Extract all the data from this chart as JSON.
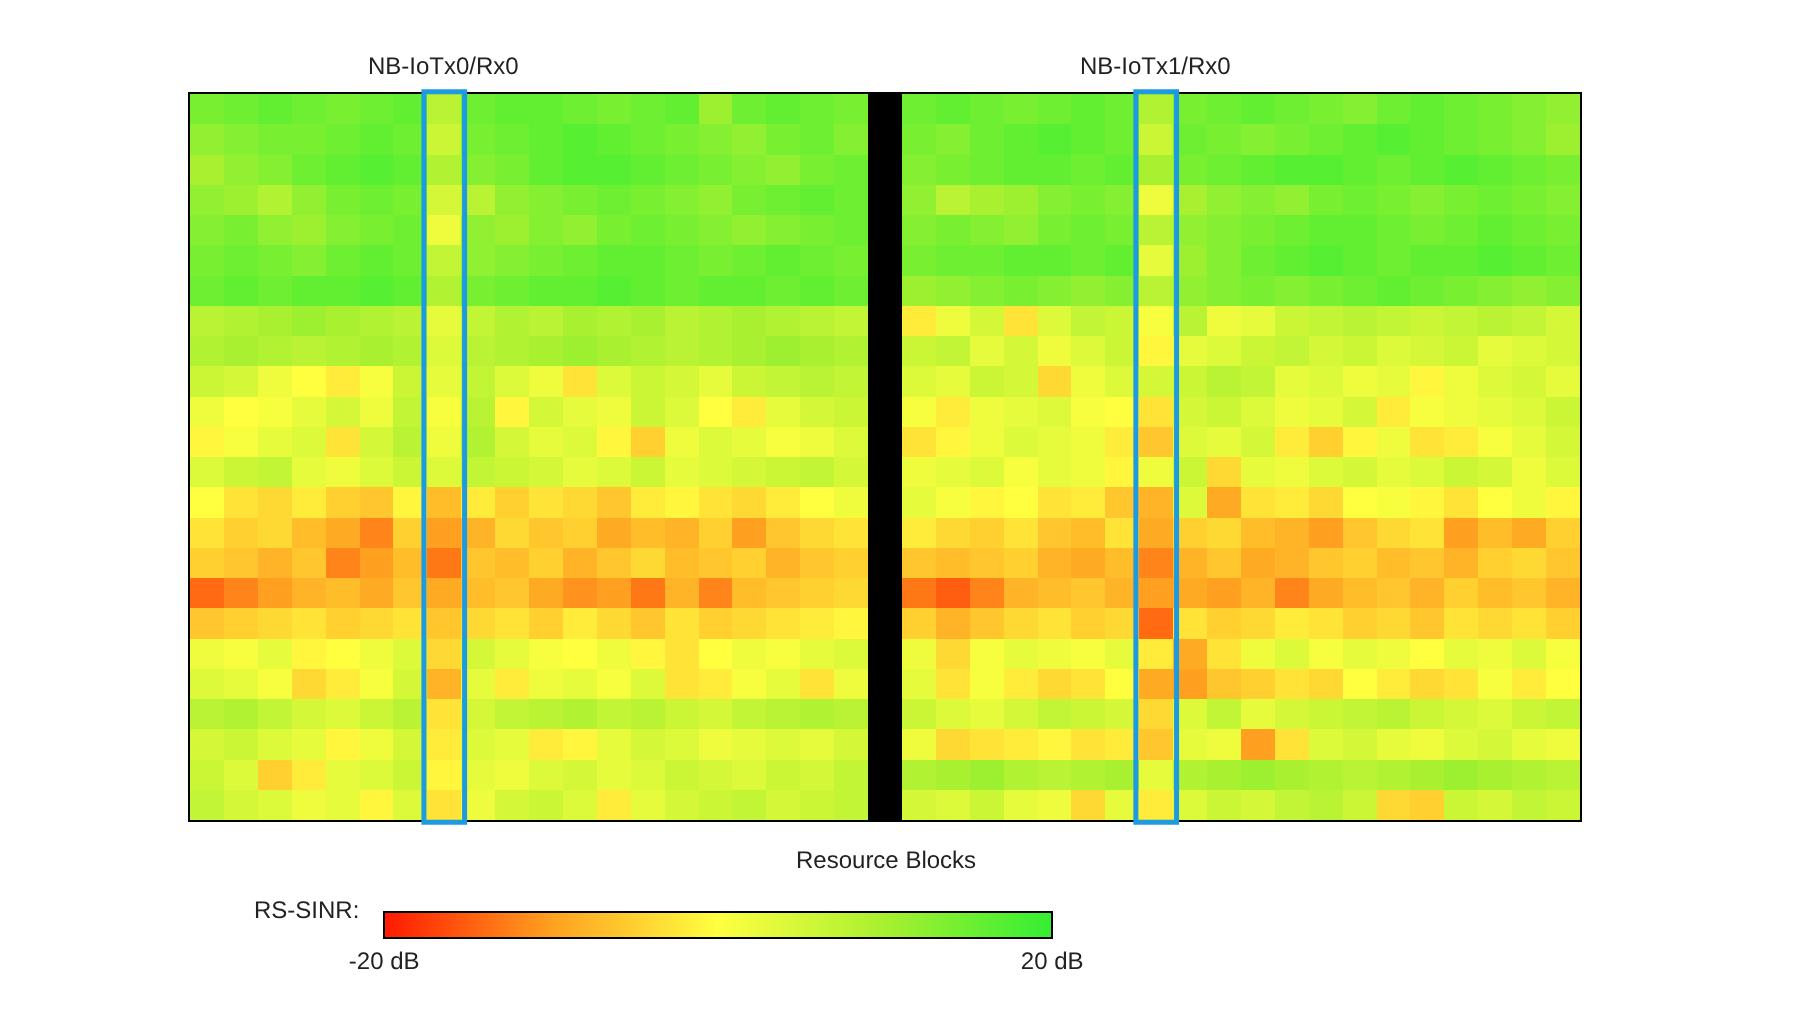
{
  "chart_data": {
    "type": "heatmap",
    "xlabel": "Resource Blocks",
    "clabel": "RS-SINR:",
    "clim": [
      -20,
      20
    ],
    "cticks": [
      {
        "value": -20,
        "label": "-20 dB"
      },
      {
        "value": 20,
        "label": "20 dB"
      }
    ],
    "annotations": [
      "NB-IoTx0/Rx0",
      "NB-IoTx1/Rx0"
    ],
    "categories": [
      null,
      null,
      null,
      null,
      null,
      null,
      null,
      null,
      null,
      null,
      null,
      null,
      null,
      null,
      null,
      null,
      null,
      null,
      null,
      null,
      null,
      null,
      null,
      null,
      null,
      null,
      null,
      null,
      null,
      null,
      null,
      null,
      null,
      null,
      null,
      null,
      null,
      null,
      null,
      null,
      null
    ],
    "y_categories": [
      null,
      null,
      null,
      null,
      null,
      null,
      null,
      null,
      null,
      null,
      null,
      null,
      null,
      null,
      null,
      null,
      null,
      null,
      null,
      null,
      null,
      null,
      null,
      null
    ],
    "cells": [
      [
        14,
        15,
        16,
        15,
        14,
        15,
        16,
        8,
        15,
        16,
        16,
        15,
        14,
        15,
        16,
        11,
        15,
        16,
        15,
        14,
        null,
        15,
        16,
        15,
        14,
        15,
        16,
        15,
        9,
        14,
        15,
        16,
        15,
        14,
        13,
        15,
        16,
        15,
        14,
        13,
        12
      ],
      [
        12,
        13,
        14,
        14,
        15,
        16,
        15,
        6,
        14,
        15,
        16,
        17,
        16,
        15,
        14,
        13,
        12,
        14,
        15,
        13,
        null,
        14,
        13,
        15,
        16,
        17,
        16,
        15,
        6,
        15,
        14,
        13,
        14,
        15,
        16,
        17,
        16,
        15,
        14,
        13,
        11
      ],
      [
        10,
        12,
        13,
        15,
        16,
        17,
        16,
        9,
        13,
        14,
        16,
        17,
        17,
        16,
        15,
        14,
        13,
        12,
        14,
        15,
        null,
        13,
        14,
        15,
        16,
        16,
        15,
        16,
        10,
        14,
        15,
        16,
        17,
        17,
        16,
        15,
        16,
        17,
        16,
        15,
        14
      ],
      [
        12,
        11,
        9,
        12,
        14,
        15,
        14,
        5,
        8,
        12,
        13,
        14,
        15,
        14,
        13,
        12,
        14,
        15,
        16,
        15,
        null,
        12,
        8,
        10,
        11,
        13,
        14,
        13,
        2,
        10,
        12,
        13,
        12,
        14,
        15,
        14,
        13,
        14,
        15,
        14,
        13
      ],
      [
        13,
        14,
        12,
        11,
        13,
        14,
        15,
        2,
        12,
        11,
        13,
        12,
        14,
        15,
        14,
        13,
        12,
        13,
        14,
        15,
        null,
        13,
        14,
        13,
        12,
        14,
        15,
        14,
        8,
        12,
        13,
        14,
        15,
        16,
        16,
        15,
        14,
        15,
        16,
        15,
        14
      ],
      [
        14,
        15,
        14,
        13,
        15,
        16,
        15,
        7,
        12,
        13,
        14,
        15,
        16,
        16,
        15,
        14,
        15,
        16,
        15,
        14,
        null,
        14,
        15,
        15,
        16,
        16,
        15,
        16,
        3,
        11,
        13,
        15,
        16,
        17,
        16,
        15,
        16,
        16,
        17,
        16,
        15
      ],
      [
        15,
        16,
        15,
        16,
        16,
        17,
        16,
        9,
        14,
        15,
        16,
        16,
        17,
        16,
        15,
        16,
        16,
        15,
        16,
        15,
        null,
        11,
        12,
        13,
        14,
        13,
        12,
        13,
        8,
        12,
        13,
        14,
        13,
        14,
        15,
        16,
        15,
        14,
        13,
        12,
        13
      ],
      [
        8,
        9,
        10,
        11,
        10,
        9,
        8,
        3,
        7,
        9,
        8,
        10,
        9,
        10,
        8,
        9,
        10,
        9,
        8,
        7,
        null,
        -2,
        2,
        5,
        -3,
        4,
        7,
        6,
        1,
        8,
        2,
        3,
        6,
        7,
        8,
        7,
        6,
        7,
        8,
        7,
        5
      ],
      [
        9,
        10,
        9,
        8,
        9,
        10,
        9,
        4,
        8,
        9,
        10,
        11,
        10,
        9,
        8,
        9,
        10,
        11,
        10,
        9,
        null,
        6,
        7,
        3,
        5,
        2,
        4,
        6,
        -1,
        3,
        4,
        6,
        7,
        5,
        6,
        4,
        5,
        6,
        3,
        4,
        5
      ],
      [
        6,
        5,
        2,
        0,
        -2,
        1,
        6,
        3,
        7,
        4,
        2,
        -3,
        4,
        6,
        5,
        3,
        6,
        7,
        8,
        7,
        null,
        4,
        3,
        6,
        5,
        -4,
        2,
        4,
        5,
        6,
        8,
        7,
        3,
        4,
        2,
        3,
        -1,
        2,
        4,
        5,
        3
      ],
      [
        2,
        0,
        1,
        3,
        5,
        2,
        7,
        1,
        8,
        -1,
        5,
        3,
        2,
        6,
        4,
        0,
        -2,
        3,
        5,
        6,
        null,
        1,
        -2,
        2,
        3,
        4,
        1,
        0,
        -3,
        5,
        6,
        4,
        2,
        3,
        5,
        -2,
        1,
        2,
        3,
        4,
        6
      ],
      [
        -1,
        1,
        3,
        4,
        -3,
        5,
        8,
        2,
        9,
        5,
        3,
        4,
        -1,
        -5,
        2,
        4,
        3,
        1,
        2,
        4,
        null,
        -3,
        -1,
        2,
        4,
        3,
        2,
        -2,
        -6,
        4,
        3,
        5,
        -2,
        -5,
        -1,
        2,
        -3,
        -2,
        1,
        3,
        5
      ],
      [
        4,
        6,
        7,
        3,
        2,
        4,
        6,
        4,
        7,
        6,
        5,
        3,
        4,
        6,
        3,
        4,
        5,
        6,
        7,
        5,
        null,
        2,
        3,
        4,
        1,
        3,
        2,
        -1,
        2,
        6,
        -4,
        3,
        2,
        4,
        5,
        3,
        4,
        6,
        5,
        2,
        4
      ],
      [
        0,
        -3,
        -4,
        -2,
        -5,
        -6,
        -1,
        -7,
        -2,
        -5,
        -3,
        -4,
        -6,
        -2,
        -1,
        -3,
        -4,
        -2,
        0,
        2,
        null,
        3,
        1,
        -1,
        0,
        -3,
        -2,
        -6,
        -8,
        4,
        -9,
        -3,
        -2,
        -4,
        0,
        1,
        -1,
        -3,
        0,
        2,
        -1
      ],
      [
        -3,
        -5,
        -4,
        -7,
        -9,
        -12,
        -5,
        -10,
        -8,
        -4,
        -6,
        -5,
        -9,
        -7,
        -8,
        -5,
        -10,
        -6,
        -4,
        -3,
        null,
        -2,
        -4,
        -5,
        -3,
        -6,
        -7,
        -3,
        -9,
        -5,
        -4,
        -7,
        -8,
        -10,
        -6,
        -4,
        -3,
        -10,
        -7,
        -9,
        -5
      ],
      [
        -5,
        -6,
        -8,
        -6,
        -12,
        -10,
        -7,
        -13,
        -6,
        -7,
        -5,
        -8,
        -6,
        -4,
        -7,
        -6,
        -5,
        -8,
        -6,
        -5,
        null,
        -6,
        -7,
        -6,
        -5,
        -8,
        -9,
        -7,
        -12,
        -8,
        -6,
        -9,
        -8,
        -6,
        -5,
        -7,
        -6,
        -8,
        -5,
        -4,
        -6
      ],
      [
        -14,
        -12,
        -10,
        -8,
        -7,
        -9,
        -6,
        -9,
        -7,
        -6,
        -9,
        -11,
        -10,
        -13,
        -8,
        -12,
        -7,
        -6,
        -5,
        -4,
        null,
        -13,
        -15,
        -12,
        -8,
        -7,
        -6,
        -8,
        -10,
        -9,
        -10,
        -8,
        -12,
        -9,
        -7,
        -6,
        -8,
        -5,
        -7,
        -6,
        -8
      ],
      [
        -6,
        -5,
        -4,
        -3,
        -5,
        -4,
        -3,
        -6,
        -4,
        -3,
        -5,
        -2,
        -4,
        -6,
        -3,
        -5,
        -4,
        -3,
        -2,
        -1,
        null,
        -5,
        -8,
        -6,
        -4,
        -3,
        -5,
        -4,
        -14,
        -3,
        -5,
        -4,
        -2,
        -3,
        -5,
        -4,
        -6,
        -3,
        -4,
        -3,
        -5
      ],
      [
        2,
        1,
        3,
        -1,
        0,
        2,
        4,
        -4,
        5,
        3,
        1,
        0,
        2,
        -1,
        -3,
        0,
        2,
        1,
        3,
        4,
        null,
        2,
        -4,
        1,
        3,
        2,
        1,
        3,
        -2,
        -9,
        -3,
        2,
        4,
        1,
        3,
        2,
        0,
        3,
        2,
        4,
        1
      ],
      [
        4,
        3,
        1,
        -4,
        -2,
        1,
        5,
        -8,
        3,
        -2,
        2,
        3,
        1,
        4,
        -3,
        -2,
        1,
        3,
        -3,
        2,
        null,
        3,
        -3,
        1,
        -2,
        -4,
        -3,
        0,
        -9,
        -10,
        -6,
        -5,
        -3,
        -4,
        0,
        -2,
        -4,
        -3,
        1,
        -2,
        0
      ],
      [
        8,
        9,
        7,
        5,
        4,
        6,
        8,
        -3,
        5,
        7,
        8,
        9,
        7,
        8,
        6,
        5,
        7,
        8,
        9,
        8,
        null,
        6,
        4,
        3,
        5,
        7,
        6,
        5,
        -4,
        4,
        7,
        3,
        5,
        6,
        7,
        8,
        6,
        5,
        4,
        6,
        7
      ],
      [
        5,
        6,
        4,
        3,
        -1,
        2,
        5,
        -2,
        4,
        3,
        -2,
        -1,
        3,
        5,
        4,
        2,
        3,
        4,
        3,
        5,
        null,
        2,
        -4,
        -3,
        -2,
        -1,
        -3,
        -2,
        -6,
        3,
        2,
        -10,
        -3,
        4,
        5,
        3,
        2,
        4,
        5,
        3,
        2
      ],
      [
        6,
        4,
        -5,
        -2,
        3,
        4,
        6,
        -1,
        3,
        2,
        4,
        5,
        3,
        4,
        6,
        5,
        4,
        6,
        5,
        7,
        null,
        9,
        10,
        11,
        9,
        8,
        9,
        10,
        3,
        9,
        10,
        11,
        10,
        9,
        8,
        9,
        10,
        11,
        10,
        9,
        8
      ],
      [
        7,
        5,
        4,
        2,
        3,
        -1,
        4,
        -3,
        2,
        5,
        6,
        4,
        -2,
        3,
        5,
        6,
        7,
        5,
        6,
        7,
        null,
        5,
        4,
        6,
        3,
        2,
        -4,
        3,
        -2,
        4,
        6,
        5,
        7,
        8,
        6,
        -4,
        -5,
        6,
        5,
        7,
        6
      ]
    ]
  }
}
